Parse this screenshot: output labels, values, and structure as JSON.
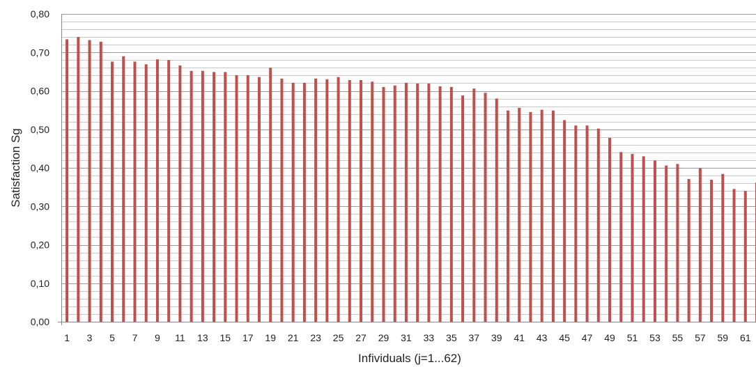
{
  "chart_data": {
    "type": "bar",
    "title": "",
    "xlabel": "Infividuals (j=1...62)",
    "ylabel": "Satisfaction Sg",
    "ylim": [
      0,
      0.8
    ],
    "y_ticks": [
      "0,00",
      "0,10",
      "0,20",
      "0,30",
      "0,40",
      "0,50",
      "0,60",
      "0,70",
      "0,80"
    ],
    "y_tick_values": [
      0,
      0.1,
      0.2,
      0.3,
      0.4,
      0.5,
      0.6,
      0.7,
      0.8
    ],
    "minor_gridline_step": 0.02,
    "grid": true,
    "legend": "none",
    "bar_color": "#c0504d",
    "x_tick_labels": [
      "1",
      "3",
      "5",
      "7",
      "9",
      "11",
      "13",
      "15",
      "17",
      "19",
      "21",
      "23",
      "25",
      "27",
      "29",
      "31",
      "33",
      "35",
      "37",
      "39",
      "41",
      "43",
      "45",
      "47",
      "49",
      "51",
      "53",
      "55",
      "57",
      "59",
      "61"
    ],
    "categories": [
      1,
      2,
      3,
      4,
      5,
      6,
      7,
      8,
      9,
      10,
      11,
      12,
      13,
      14,
      15,
      16,
      17,
      18,
      19,
      20,
      21,
      22,
      23,
      24,
      25,
      26,
      27,
      28,
      29,
      30,
      31,
      32,
      33,
      34,
      35,
      36,
      37,
      38,
      39,
      40,
      41,
      42,
      43,
      44,
      45,
      46,
      47,
      48,
      49,
      50,
      51,
      52,
      53,
      54,
      55,
      56,
      57,
      58,
      59,
      60,
      61,
      62
    ],
    "values": [
      0.734,
      0.74,
      0.732,
      0.728,
      0.676,
      0.69,
      0.676,
      0.669,
      0.682,
      0.68,
      0.666,
      0.652,
      0.652,
      0.649,
      0.649,
      0.641,
      0.641,
      0.636,
      0.66,
      0.632,
      0.621,
      0.621,
      0.632,
      0.63,
      0.636,
      0.628,
      0.628,
      0.624,
      0.61,
      0.614,
      0.621,
      0.619,
      0.619,
      0.612,
      0.61,
      0.588,
      0.606,
      0.595,
      0.58,
      0.549,
      0.556,
      0.545,
      0.551,
      0.549,
      0.524,
      0.51,
      0.51,
      0.502,
      0.478,
      0.441,
      0.436,
      0.43,
      0.419,
      0.406,
      0.41,
      0.371,
      0.399,
      0.369,
      0.384,
      0.345,
      0.34,
      0.362
    ]
  }
}
